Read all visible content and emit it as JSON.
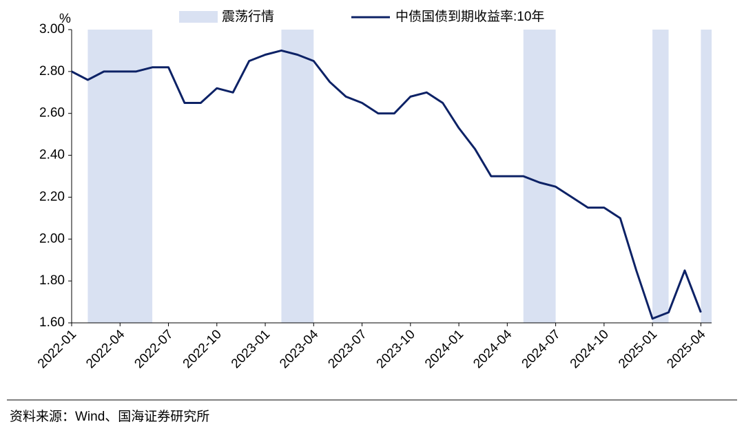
{
  "chart_data": {
    "type": "line",
    "y_unit": "%",
    "source": "资料来源：Wind、国海证券研究所",
    "x": [
      "2022-01",
      "2022-02",
      "2022-03",
      "2022-04",
      "2022-05",
      "2022-06",
      "2022-07",
      "2022-08",
      "2022-09",
      "2022-10",
      "2022-11",
      "2022-12",
      "2023-01",
      "2023-02",
      "2023-03",
      "2023-04",
      "2023-05",
      "2023-06",
      "2023-07",
      "2023-08",
      "2023-09",
      "2023-10",
      "2023-11",
      "2023-12",
      "2024-01",
      "2024-02",
      "2024-03",
      "2024-04",
      "2024-05",
      "2024-06",
      "2024-07",
      "2024-08",
      "2024-09",
      "2024-10",
      "2024-11",
      "2024-12",
      "2025-01",
      "2025-02",
      "2025-03",
      "2025-04"
    ],
    "xticks": [
      "2022-01",
      "2022-04",
      "2022-07",
      "2022-10",
      "2023-01",
      "2023-04",
      "2023-07",
      "2023-10",
      "2024-01",
      "2024-04",
      "2024-07",
      "2024-10",
      "2025-01",
      "2025-04"
    ],
    "series": [
      {
        "name": "中债国债到期收益率:10年",
        "color": "#0d2266",
        "values": [
          2.8,
          2.76,
          2.8,
          2.8,
          2.8,
          2.82,
          2.82,
          2.65,
          2.65,
          2.72,
          2.7,
          2.85,
          2.88,
          2.9,
          2.88,
          2.85,
          2.75,
          2.68,
          2.65,
          2.6,
          2.6,
          2.68,
          2.7,
          2.65,
          2.53,
          2.43,
          2.3,
          2.3,
          2.3,
          2.27,
          2.25,
          2.2,
          2.15,
          2.15,
          2.1,
          1.85,
          1.62,
          1.65,
          1.85,
          1.65
        ]
      }
    ],
    "bands": {
      "name": "震荡行情",
      "color": "#d9e1f2",
      "ranges": [
        [
          "2022-02",
          "2022-05"
        ],
        [
          "2023-02",
          "2023-03"
        ],
        [
          "2024-05",
          "2024-06"
        ],
        [
          "2025-01",
          "2025-01"
        ],
        [
          "2025-04",
          "2025-04"
        ]
      ]
    },
    "ylim": [
      1.6,
      3.0
    ],
    "yticks": [
      {
        "value": 1.6,
        "label": "1.60"
      },
      {
        "value": 1.8,
        "label": "1.80"
      },
      {
        "value": 2.0,
        "label": "2.00"
      },
      {
        "value": 2.2,
        "label": "2.20"
      },
      {
        "value": 2.4,
        "label": "2.40"
      },
      {
        "value": 2.6,
        "label": "2.60"
      },
      {
        "value": 2.8,
        "label": "2.80"
      },
      {
        "value": 3.0,
        "label": "3.00"
      }
    ]
  }
}
